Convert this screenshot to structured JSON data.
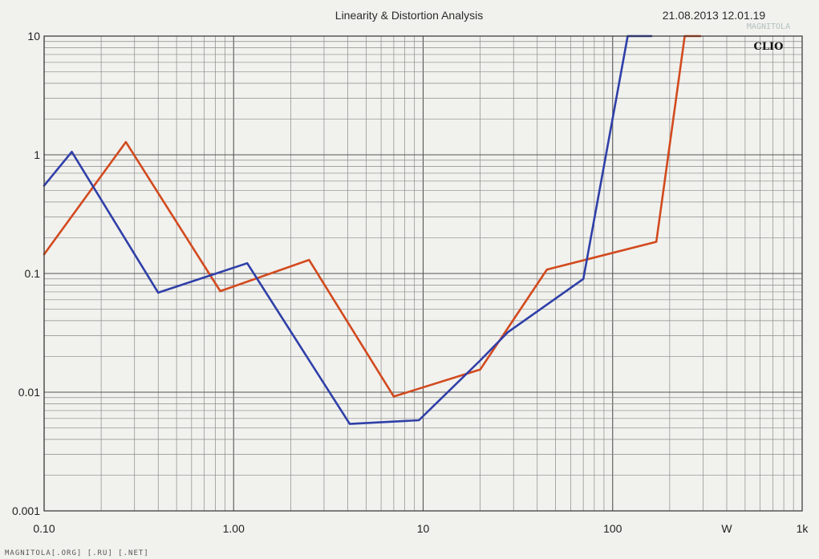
{
  "chart_data": {
    "type": "line",
    "title": "Linearity & Distortion Analysis",
    "datetime": "21.08.2013 12.01.19",
    "brand": "CLIO",
    "x_scale": "log",
    "y_scale": "log",
    "xlim": [
      0.1,
      1000
    ],
    "ylim": [
      0.001,
      10
    ],
    "x_tick_labels": [
      {
        "value": 0.1,
        "label": "0.10"
      },
      {
        "value": 1,
        "label": "1.00"
      },
      {
        "value": 10,
        "label": "10"
      },
      {
        "value": 100,
        "label": "100"
      },
      {
        "value": 400,
        "label": "W"
      },
      {
        "value": 1000,
        "label": "1k"
      }
    ],
    "y_tick_labels": [
      {
        "value": 10,
        "label": "10"
      },
      {
        "value": 1,
        "label": "1"
      },
      {
        "value": 0.1,
        "label": "0.1"
      },
      {
        "value": 0.01,
        "label": "0.01"
      },
      {
        "value": 0.001,
        "label": "0.001"
      }
    ],
    "grid": true,
    "series": [
      {
        "color": "#d24a1e",
        "x": [
          0.1,
          0.27,
          0.85,
          2.5,
          7,
          20,
          45,
          170,
          240,
          290
        ],
        "y": [
          0.145,
          1.28,
          0.071,
          0.13,
          0.0092,
          0.0155,
          0.108,
          0.185,
          10,
          10
        ]
      },
      {
        "color": "#2f3fa8",
        "x": [
          0.1,
          0.14,
          0.4,
          1.18,
          4.1,
          9.5,
          20,
          28,
          70,
          120,
          160
        ],
        "y": [
          0.55,
          1.06,
          0.069,
          0.122,
          0.0054,
          0.0058,
          0.0185,
          0.032,
          0.09,
          10,
          10
        ]
      }
    ]
  },
  "watermark": {
    "text": "MAGNITOLA[.ORG] [.RU] [.NET]",
    "logo_text": "MAGNITOLA"
  }
}
